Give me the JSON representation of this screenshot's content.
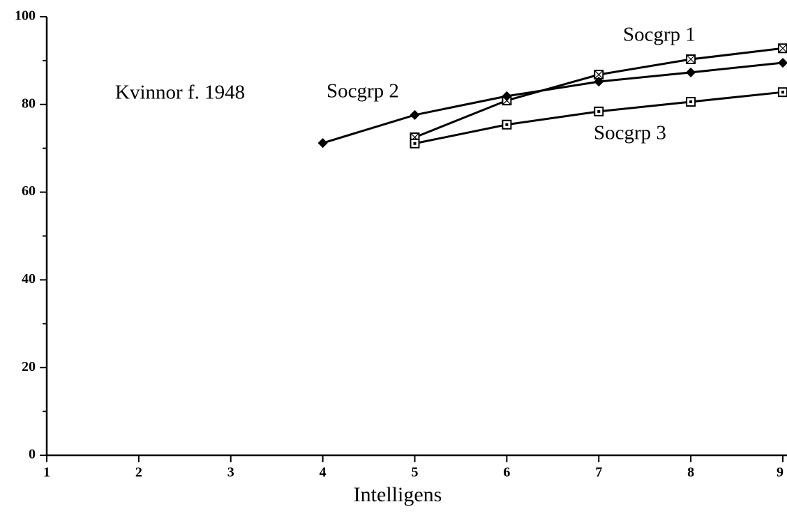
{
  "chart_data": {
    "type": "line",
    "annotation": "Kvinnor f. 1948",
    "x_label": "Intelligens",
    "xlim": [
      1,
      9
    ],
    "xticks": [
      1,
      2,
      3,
      4,
      5,
      6,
      7,
      8,
      9
    ],
    "ylim": [
      0,
      100
    ],
    "yticks": [
      0,
      20,
      40,
      60,
      80,
      100
    ],
    "yminor_ticks": [
      10,
      30,
      50,
      70,
      90
    ],
    "series": [
      {
        "name": "Socgrp 1",
        "color": "#000000",
        "marker": "square-cross",
        "x": [
          5,
          6,
          7,
          8,
          9
        ],
        "values": [
          72.5,
          80.9,
          86.8,
          90.3,
          92.8
        ]
      },
      {
        "name": "Socgrp 2",
        "color": "#000000",
        "marker": "diamond",
        "x": [
          4,
          5,
          6,
          7,
          8,
          9
        ],
        "values": [
          71.2,
          77.6,
          81.9,
          85.2,
          87.3,
          89.5
        ]
      },
      {
        "name": "Socgrp 3",
        "color": "#000000",
        "marker": "square-dot",
        "x": [
          5,
          6,
          7,
          8,
          9
        ],
        "values": [
          71.1,
          75.4,
          78.4,
          80.6,
          82.8
        ]
      }
    ]
  }
}
